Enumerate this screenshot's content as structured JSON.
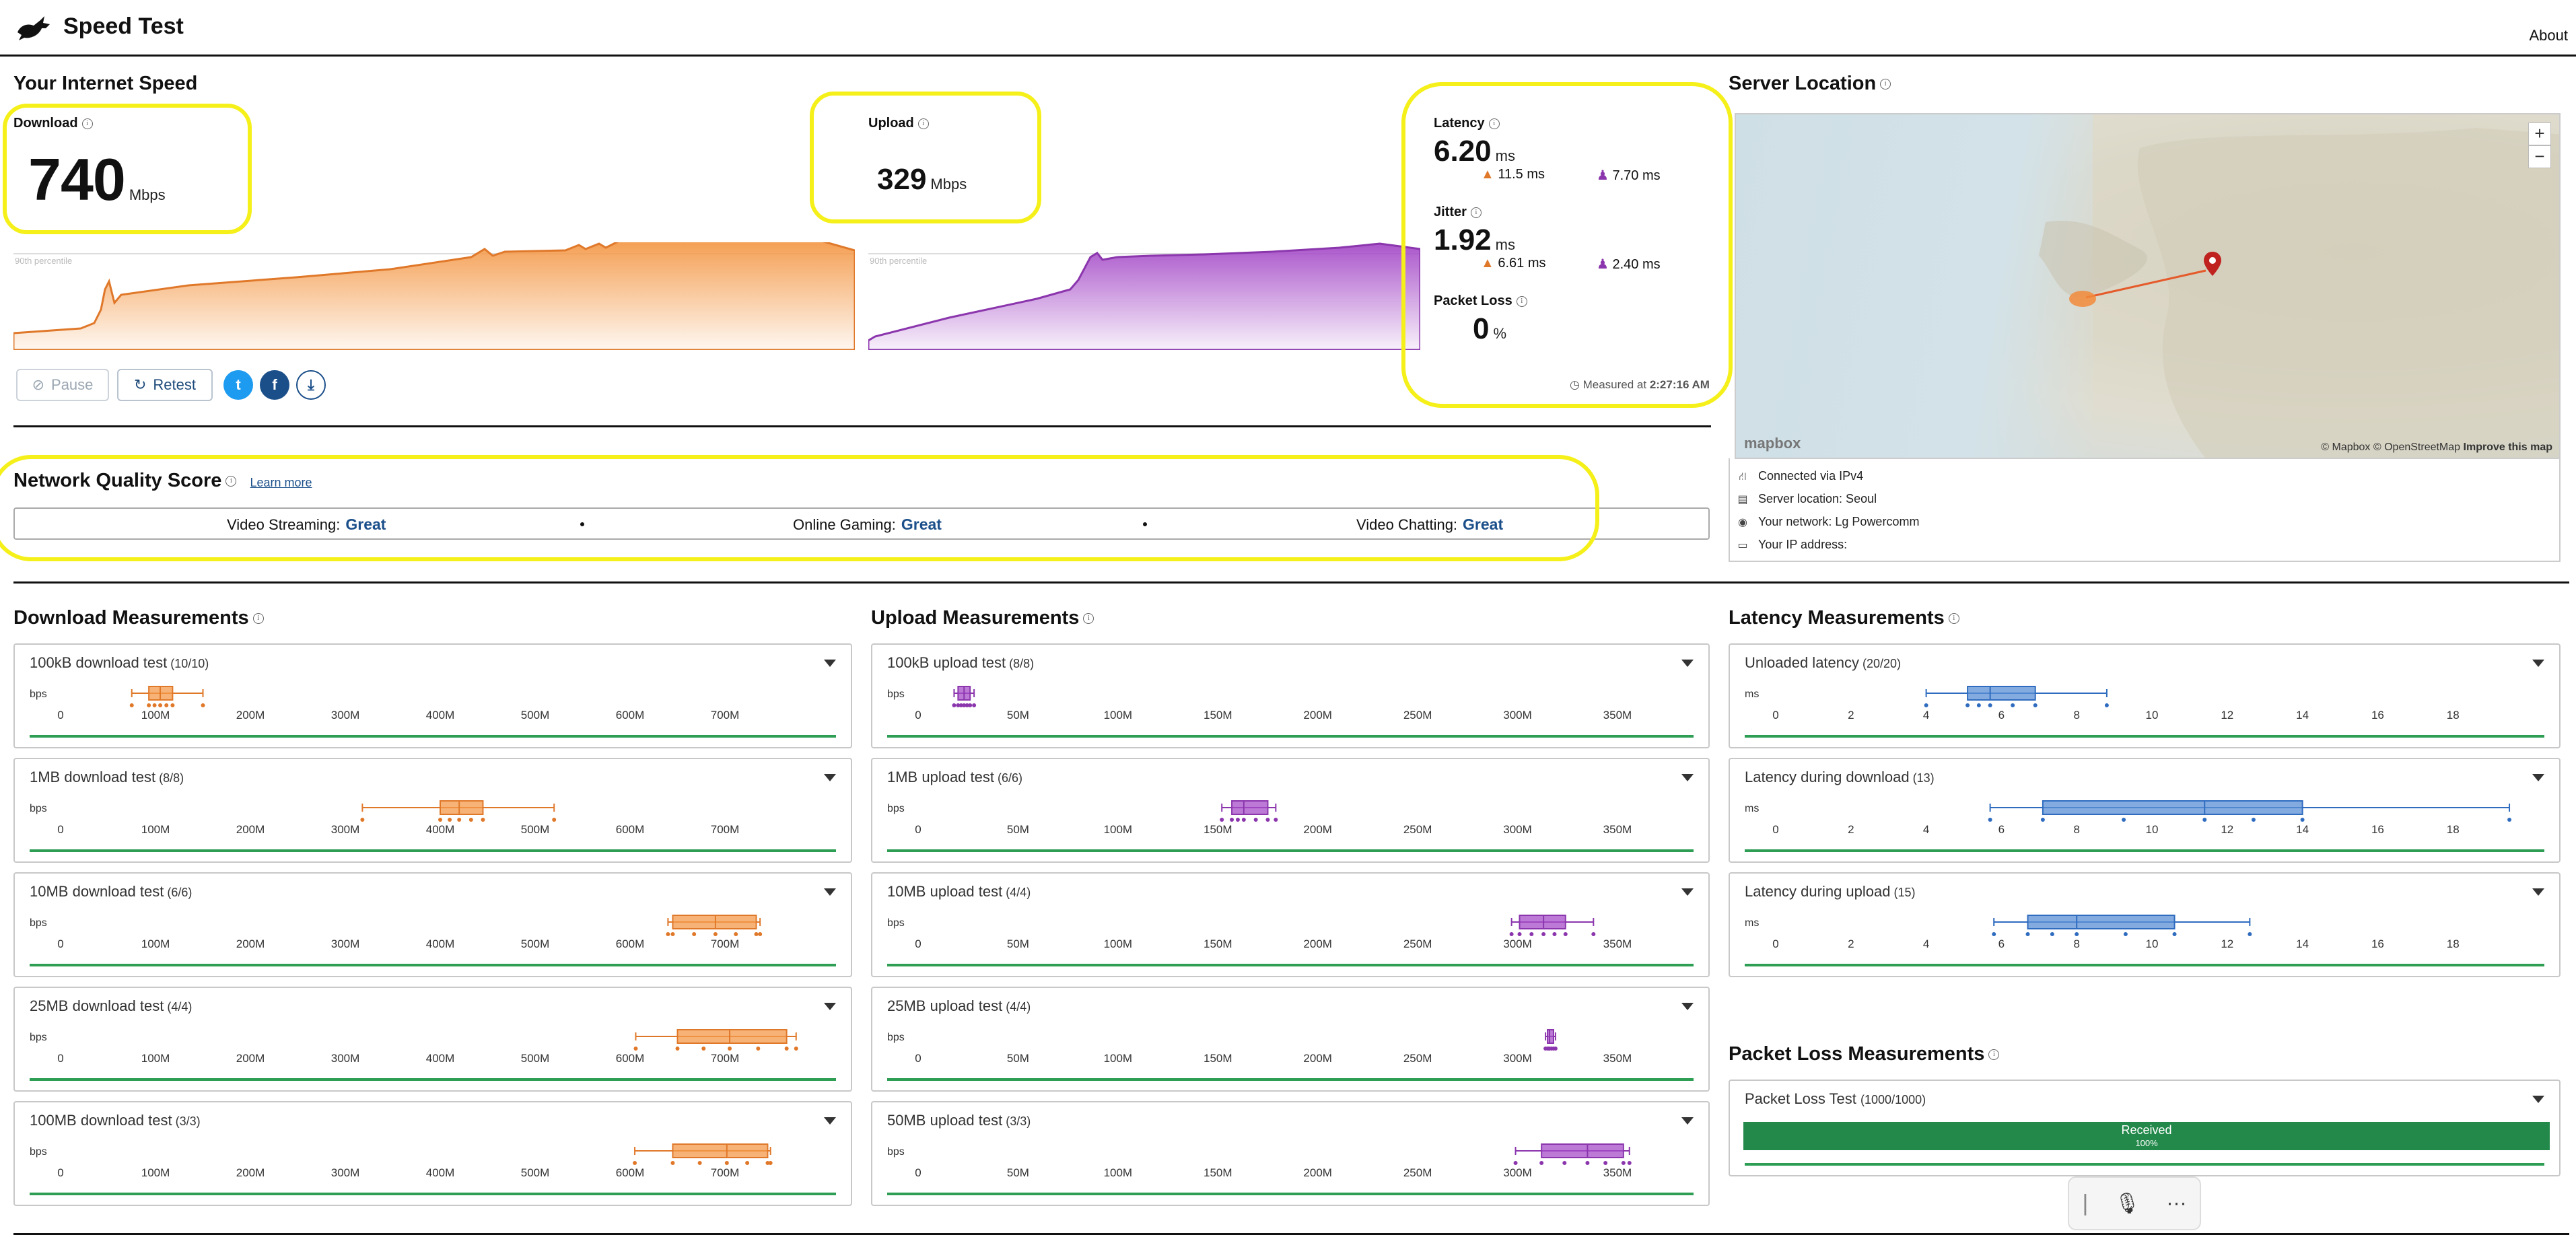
{
  "header": {
    "title": "Speed Test",
    "about": "About"
  },
  "speed": {
    "title": "Your Internet Speed",
    "download": {
      "label": "Download",
      "value": "740",
      "unit": "Mbps"
    },
    "upload": {
      "label": "Upload",
      "value": "329",
      "unit": "Mbps"
    },
    "percentile_label": "90th percentile",
    "latency": {
      "label": "Latency",
      "value": "6.20",
      "unit": "ms",
      "down": "11.5 ms",
      "up": "7.70 ms"
    },
    "jitter": {
      "label": "Jitter",
      "value": "1.92",
      "unit": "ms",
      "down": "6.61 ms",
      "up": "2.40 ms"
    },
    "packet_loss": {
      "label": "Packet Loss",
      "value": "0",
      "unit": "%"
    },
    "measured_prefix": "Measured at",
    "measured_time": "2:27:16 AM",
    "pause_label": "Pause",
    "retest_label": "Retest"
  },
  "quality": {
    "title": "Network Quality Score",
    "learn_more": "Learn more",
    "items": [
      {
        "label": "Video Streaming:",
        "value": "Great"
      },
      {
        "label": "Online Gaming:",
        "value": "Great"
      },
      {
        "label": "Video Chatting:",
        "value": "Great"
      }
    ]
  },
  "server": {
    "title": "Server Location",
    "map_attribution": "© Mapbox © OpenStreetMap",
    "improve_map": "Improve this map",
    "mapbox_logo": "mapbox",
    "zoom_in": "+",
    "zoom_out": "−",
    "connected": "Connected via IPv4",
    "location": "Server location: Seoul",
    "network": "Your network: Lg Powercomm",
    "ip": "Your IP address:"
  },
  "download_measurements": {
    "title": "Download Measurements",
    "unit": "bps",
    "axis": [
      "0",
      "100M",
      "200M",
      "300M",
      "400M",
      "500M",
      "600M",
      "700M"
    ],
    "tests": [
      {
        "name": "100kB download test",
        "count": "(10/10)"
      },
      {
        "name": "1MB download test",
        "count": "(8/8)"
      },
      {
        "name": "10MB download test",
        "count": "(6/6)"
      },
      {
        "name": "25MB download test",
        "count": "(4/4)"
      },
      {
        "name": "100MB download test",
        "count": "(3/3)"
      }
    ]
  },
  "upload_measurements": {
    "title": "Upload Measurements",
    "unit": "bps",
    "axis": [
      "0",
      "50M",
      "100M",
      "150M",
      "200M",
      "250M",
      "300M",
      "350M"
    ],
    "tests": [
      {
        "name": "100kB upload test",
        "count": "(8/8)"
      },
      {
        "name": "1MB upload test",
        "count": "(6/6)"
      },
      {
        "name": "10MB upload test",
        "count": "(4/4)"
      },
      {
        "name": "25MB upload test",
        "count": "(4/4)"
      },
      {
        "name": "50MB upload test",
        "count": "(3/3)"
      }
    ]
  },
  "latency_measurements": {
    "title": "Latency Measurements",
    "unit": "ms",
    "axis": [
      "0",
      "2",
      "4",
      "6",
      "8",
      "10",
      "12",
      "14",
      "16",
      "18"
    ],
    "tests": [
      {
        "name": "Unloaded latency",
        "count": "(20/20)"
      },
      {
        "name": "Latency during download",
        "count": "(13)"
      },
      {
        "name": "Latency during upload",
        "count": "(15)"
      }
    ]
  },
  "packet_loss_measurements": {
    "title": "Packet Loss Measurements",
    "test_name": "Packet Loss Test",
    "test_count": "(1000/1000)",
    "received_label": "Received",
    "received_pct": "100%",
    "received_fraction": 1.0
  },
  "chart_data": [
    {
      "type": "box",
      "name": "100kB download test",
      "unit": "bps",
      "xlim": [
        0,
        800
      ],
      "min": 75,
      "q1": 93,
      "median": 105,
      "q3": 118,
      "max": 150
    },
    {
      "type": "box",
      "name": "1MB download test",
      "unit": "bps",
      "xlim": [
        0,
        800
      ],
      "min": 318,
      "q1": 400,
      "median": 420,
      "q3": 445,
      "max": 520
    },
    {
      "type": "box",
      "name": "10MB download test",
      "unit": "bps",
      "xlim": [
        0,
        800
      ],
      "min": 640,
      "q1": 645,
      "median": 690,
      "q3": 733,
      "max": 737
    },
    {
      "type": "box",
      "name": "25MB download test",
      "unit": "bps",
      "xlim": [
        0,
        800
      ],
      "min": 606,
      "q1": 650,
      "median": 705,
      "q3": 765,
      "max": 775
    },
    {
      "type": "box",
      "name": "100MB download test",
      "unit": "bps",
      "xlim": [
        0,
        800
      ],
      "min": 605,
      "q1": 645,
      "median": 702,
      "q3": 745,
      "max": 748
    },
    {
      "type": "box",
      "name": "100kB upload test",
      "unit": "bps",
      "xlim": [
        0,
        380
      ],
      "min": 18,
      "q1": 20,
      "median": 23,
      "q3": 26,
      "max": 28
    },
    {
      "type": "box",
      "name": "1MB upload test",
      "unit": "bps",
      "xlim": [
        0,
        380
      ],
      "min": 152,
      "q1": 157,
      "median": 163,
      "q3": 175,
      "max": 179
    },
    {
      "type": "box",
      "name": "10MB upload test",
      "unit": "bps",
      "xlim": [
        0,
        380
      ],
      "min": 297,
      "q1": 301,
      "median": 313,
      "q3": 324,
      "max": 338
    },
    {
      "type": "box",
      "name": "25MB upload test",
      "unit": "bps",
      "xlim": [
        0,
        380
      ],
      "min": 314,
      "q1": 315,
      "median": 316,
      "q3": 318,
      "max": 319
    },
    {
      "type": "box",
      "name": "50MB upload test",
      "unit": "bps",
      "xlim": [
        0,
        380
      ],
      "min": 299,
      "q1": 312,
      "median": 335,
      "q3": 353,
      "max": 356
    },
    {
      "type": "box",
      "name": "Unloaded latency",
      "unit": "ms",
      "xlim": [
        0,
        20
      ],
      "min": 4.0,
      "q1": 5.1,
      "median": 5.7,
      "q3": 6.9,
      "max": 8.8
    },
    {
      "type": "box",
      "name": "Latency during download",
      "unit": "ms",
      "xlim": [
        0,
        20
      ],
      "min": 5.7,
      "q1": 7.1,
      "median": 11.4,
      "q3": 14.0,
      "max": 19.5
    },
    {
      "type": "box",
      "name": "Latency during upload",
      "unit": "ms",
      "xlim": [
        0,
        20
      ],
      "min": 5.8,
      "q1": 6.7,
      "median": 8.0,
      "q3": 10.6,
      "max": 12.6
    }
  ],
  "colors": {
    "download": "#f49a4a",
    "upload": "#a64dc8",
    "latency": "#5b8fd6",
    "good": "#2e9e55",
    "highlight": "#f5f019"
  }
}
